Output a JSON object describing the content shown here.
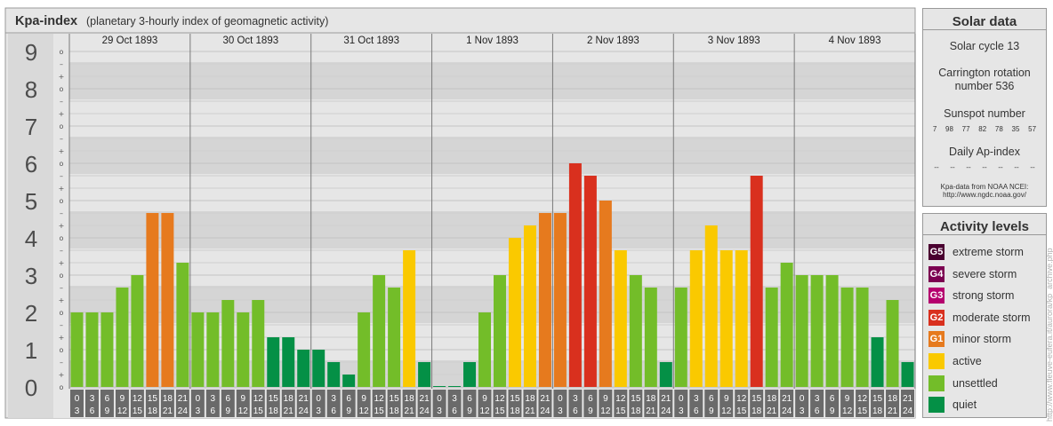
{
  "header": {
    "title": "Kpa-index",
    "subtitle": "(planetary 3-hourly index of geomagnetic activity)"
  },
  "chart_data": {
    "type": "bar",
    "ylim": [
      0,
      9
    ],
    "y_ticks": [
      "0",
      "1",
      "2",
      "3",
      "4",
      "5",
      "6",
      "7",
      "8",
      "9"
    ],
    "sub_ticks": [
      "o",
      "+",
      "–"
    ],
    "days": [
      "29 Oct 1893",
      "30 Oct 1893",
      "31 Oct 1893",
      "1 Nov 1893",
      "2 Nov 1893",
      "3 Nov 1893",
      "4 Nov 1893"
    ],
    "slot_start": [
      "0",
      "3",
      "6",
      "9",
      "12",
      "15",
      "18",
      "21"
    ],
    "slot_end": [
      "3",
      "6",
      "9",
      "12",
      "15",
      "18",
      "21",
      "24"
    ],
    "values": [
      [
        2.0,
        2.0,
        2.0,
        2.667,
        3.0,
        4.667,
        4.667,
        3.333
      ],
      [
        2.0,
        2.0,
        2.333,
        2.0,
        2.333,
        1.333,
        1.333,
        1.0
      ],
      [
        1.0,
        0.667,
        0.333,
        2.0,
        3.0,
        2.667,
        3.667,
        0.667
      ],
      [
        0.0,
        0.0,
        0.667,
        2.0,
        3.0,
        4.0,
        4.333,
        4.667
      ],
      [
        4.667,
        6.0,
        5.667,
        5.0,
        3.667,
        3.0,
        2.667,
        0.667
      ],
      [
        2.667,
        3.667,
        4.333,
        3.667,
        3.667,
        5.667,
        2.667,
        3.333
      ],
      [
        3.0,
        3.0,
        3.0,
        2.667,
        2.667,
        1.333,
        2.333,
        0.667
      ]
    ],
    "grid": true,
    "level_colors": {
      "quiet": "#049046",
      "unsettled": "#73bd29",
      "active": "#fac900",
      "G1": "#e67a1e",
      "G2": "#d9301e",
      "G3": "#b5006e",
      "G4": "#7b0050",
      "G5": "#4a0030"
    }
  },
  "solar": {
    "header": "Solar data",
    "cycle": "Solar cycle 13",
    "carrington_1": "Carrington rotation",
    "carrington_2": "number 536",
    "sunspot_title": "Sunspot number",
    "sunspot_values": [
      "7",
      "98",
      "77",
      "82",
      "78",
      "35",
      "57"
    ],
    "ap_title": "Daily Ap-index",
    "ap_values": [
      "--",
      "--",
      "--",
      "--",
      "--",
      "--",
      "--"
    ],
    "source_1": "Kpa-data from NOAA NCEI:",
    "source_2": "http://www.ngdc.noaa.gov/"
  },
  "activity": {
    "header": "Activity levels",
    "items": [
      {
        "badge": "G5",
        "label": "extreme storm",
        "color": "#4a0030"
      },
      {
        "badge": "G4",
        "label": "severe storm",
        "color": "#7b0050"
      },
      {
        "badge": "G3",
        "label": "strong storm",
        "color": "#b5006e"
      },
      {
        "badge": "G2",
        "label": "moderate storm",
        "color": "#d9301e"
      },
      {
        "badge": "G1",
        "label": "minor storm",
        "color": "#e67a1e"
      },
      {
        "badge": "",
        "label": "active",
        "color": "#fac900"
      },
      {
        "badge": "",
        "label": "unsettled",
        "color": "#73bd29"
      },
      {
        "badge": "",
        "label": "quiet",
        "color": "#049046"
      }
    ]
  },
  "watermark": "http://www.fleuve-eufera.it/aurora/kp_archive.php"
}
